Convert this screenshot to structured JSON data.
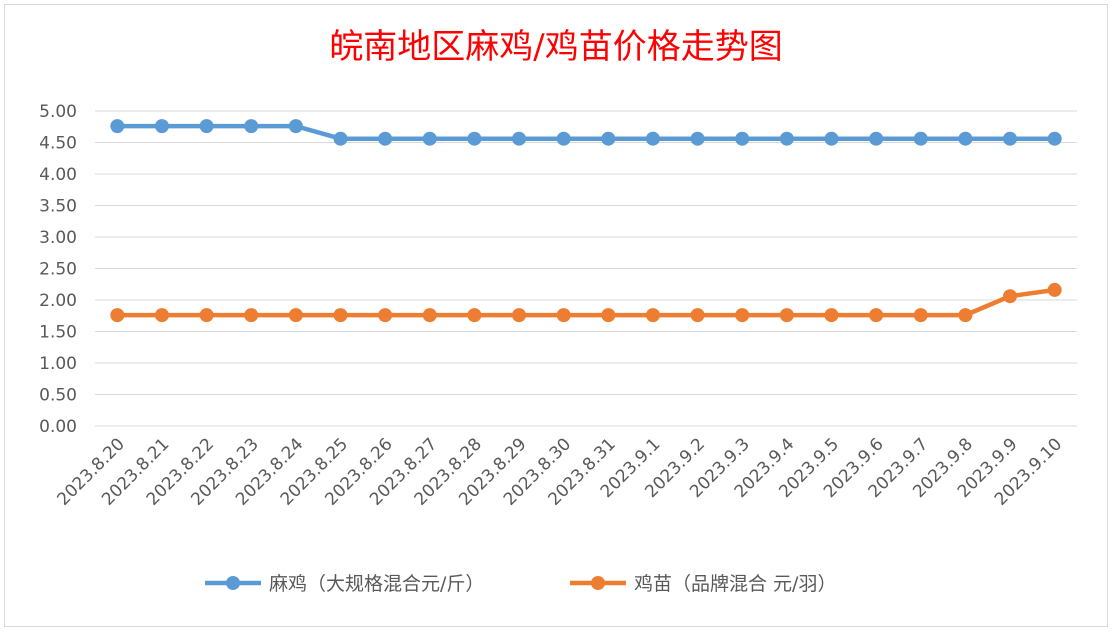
{
  "chart_data": {
    "type": "line",
    "title": "皖南地区麻鸡/鸡苗价格走势图",
    "xlabel": "",
    "ylabel": "",
    "categories": [
      "2023.8.20",
      "2023.8.21",
      "2023.8.22",
      "2023.8.23",
      "2023.8.24",
      "2023.8.25",
      "2023.8.26",
      "2023.8.27",
      "2023.8.28",
      "2023.8.29",
      "2023.8.30",
      "2023.8.31",
      "2023.9.1",
      "2023.9.2",
      "2023.9.3",
      "2023.9.4",
      "2023.9.5",
      "2023.9.6",
      "2023.9.7",
      "2023.9.8",
      "2023.9.9",
      "2023.9.10"
    ],
    "yticks": [
      "0.00",
      "0.50",
      "1.00",
      "1.50",
      "2.00",
      "2.50",
      "3.00",
      "3.50",
      "4.00",
      "4.50",
      "5.00"
    ],
    "ylim": [
      0,
      5
    ],
    "grid": true,
    "legend_position": "bottom",
    "series": [
      {
        "name": "麻鸡（大规格混合元/斤）",
        "color": "#5b9bd5",
        "values": [
          4.76,
          4.76,
          4.76,
          4.76,
          4.76,
          4.56,
          4.56,
          4.56,
          4.56,
          4.56,
          4.56,
          4.56,
          4.56,
          4.56,
          4.56,
          4.56,
          4.56,
          4.56,
          4.56,
          4.56,
          4.56,
          4.56
        ]
      },
      {
        "name": "鸡苗（品牌混合 元/羽）",
        "color": "#ed7d31",
        "values": [
          1.76,
          1.76,
          1.76,
          1.76,
          1.76,
          1.76,
          1.76,
          1.76,
          1.76,
          1.76,
          1.76,
          1.76,
          1.76,
          1.76,
          1.76,
          1.76,
          1.76,
          1.76,
          1.76,
          1.76,
          2.06,
          2.16
        ]
      }
    ]
  }
}
